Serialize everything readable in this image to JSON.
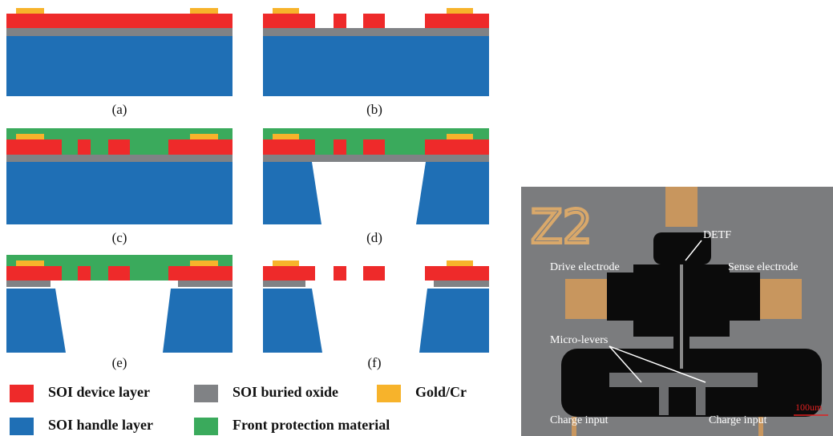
{
  "panels": [
    {
      "label": "(a)"
    },
    {
      "label": "(b)"
    },
    {
      "label": "(c)"
    },
    {
      "label": "(d)"
    },
    {
      "label": "(e)"
    },
    {
      "label": "(f)"
    }
  ],
  "legend": [
    {
      "label": "SOI device layer",
      "color": "#ee2a2a"
    },
    {
      "label": "SOI buried oxide",
      "color": "#808285"
    },
    {
      "label": "Gold/Cr",
      "color": "#f7b32b"
    },
    {
      "label": "SOI handle layer",
      "color": "#1f6fb5"
    },
    {
      "label": "Front protection material",
      "color": "#3aaa5c"
    }
  ],
  "micrograph": {
    "chip_mark": "Z2",
    "labels": [
      "DETF",
      "Drive electrode",
      "Sense electrode",
      "Micro-levers",
      "Charge input",
      "Charge input"
    ],
    "scale_bar": "100um"
  }
}
